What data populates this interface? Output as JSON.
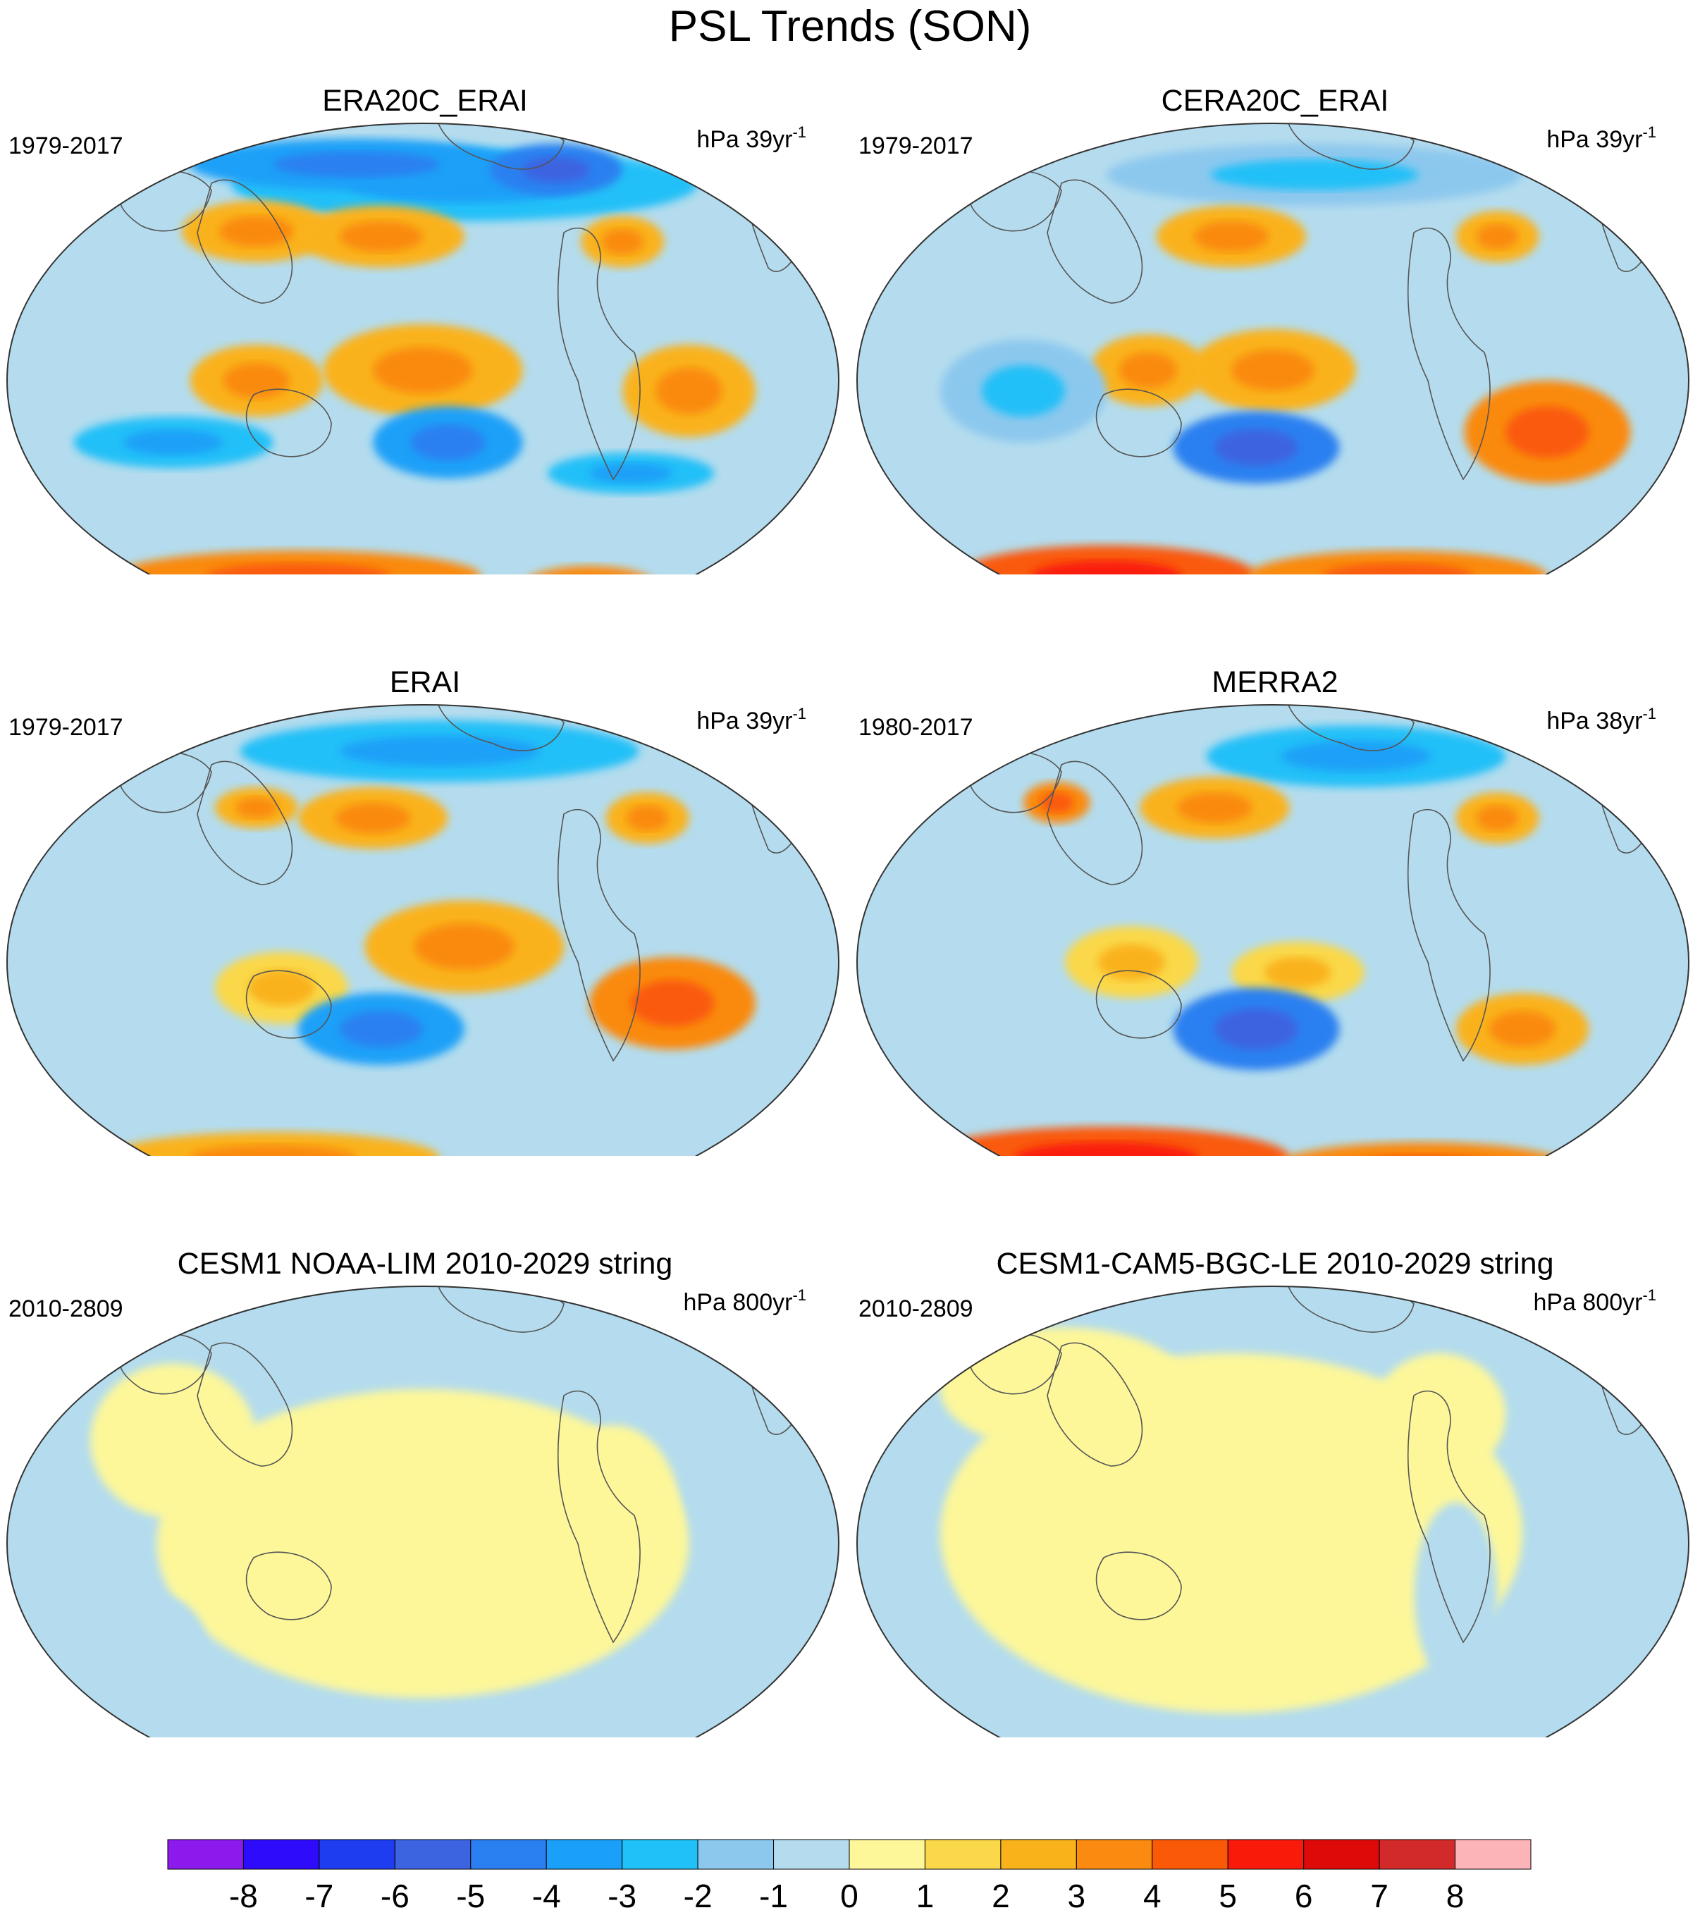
{
  "figure": {
    "title": "PSL Trends (SON)"
  },
  "panels": [
    {
      "title": "ERA20C_ERAI",
      "period": "1979-2017",
      "units_prefix": "hPa 39yr",
      "units_exp": "-1",
      "pattern": "observed_a"
    },
    {
      "title": "CERA20C_ERAI",
      "period": "1979-2017",
      "units_prefix": "hPa 39yr",
      "units_exp": "-1",
      "pattern": "observed_b"
    },
    {
      "title": "ERAI",
      "period": "1979-2017",
      "units_prefix": "hPa 39yr",
      "units_exp": "-1",
      "pattern": "observed_c"
    },
    {
      "title": "MERRA2",
      "period": "1980-2017",
      "units_prefix": "hPa 38yr",
      "units_exp": "-1",
      "pattern": "observed_d"
    },
    {
      "title": "CESM1 NOAA-LIM 2010-2029 string",
      "period": "2010-2809",
      "units_prefix": "hPa 800yr",
      "units_exp": "-1",
      "pattern": "model_a"
    },
    {
      "title": "CESM1-CAM5-BGC-LE 2010-2029 string",
      "period": "2010-2809",
      "units_prefix": "hPa 800yr",
      "units_exp": "-1",
      "pattern": "model_b"
    }
  ],
  "colorbar": {
    "labels": [
      "-8",
      "-7",
      "-6",
      "-5",
      "-4",
      "-3",
      "-2",
      "-1",
      "0",
      "1",
      "2",
      "3",
      "4",
      "5",
      "6",
      "7",
      "8"
    ],
    "colors": [
      "#8c1aed",
      "#2e0bfa",
      "#1e3cf0",
      "#3c64e0",
      "#2a80f0",
      "#1aa0f8",
      "#20c0f8",
      "#8cc8ee",
      "#b4dcee",
      "#fdf79a",
      "#fad84a",
      "#fab21a",
      "#fa8a10",
      "#fa5a08",
      "#fa1a0a",
      "#de0a0a",
      "#d22a2a",
      "#fdb4b8"
    ]
  },
  "chart_data": {
    "type": "heatmap",
    "title": "PSL Trends (SON)",
    "variable": "PSL",
    "season": "SON",
    "contour_levels": [
      -8,
      -7,
      -6,
      -5,
      -4,
      -3,
      -2,
      -1,
      0,
      1,
      2,
      3,
      4,
      5,
      6,
      7,
      8
    ]
  }
}
